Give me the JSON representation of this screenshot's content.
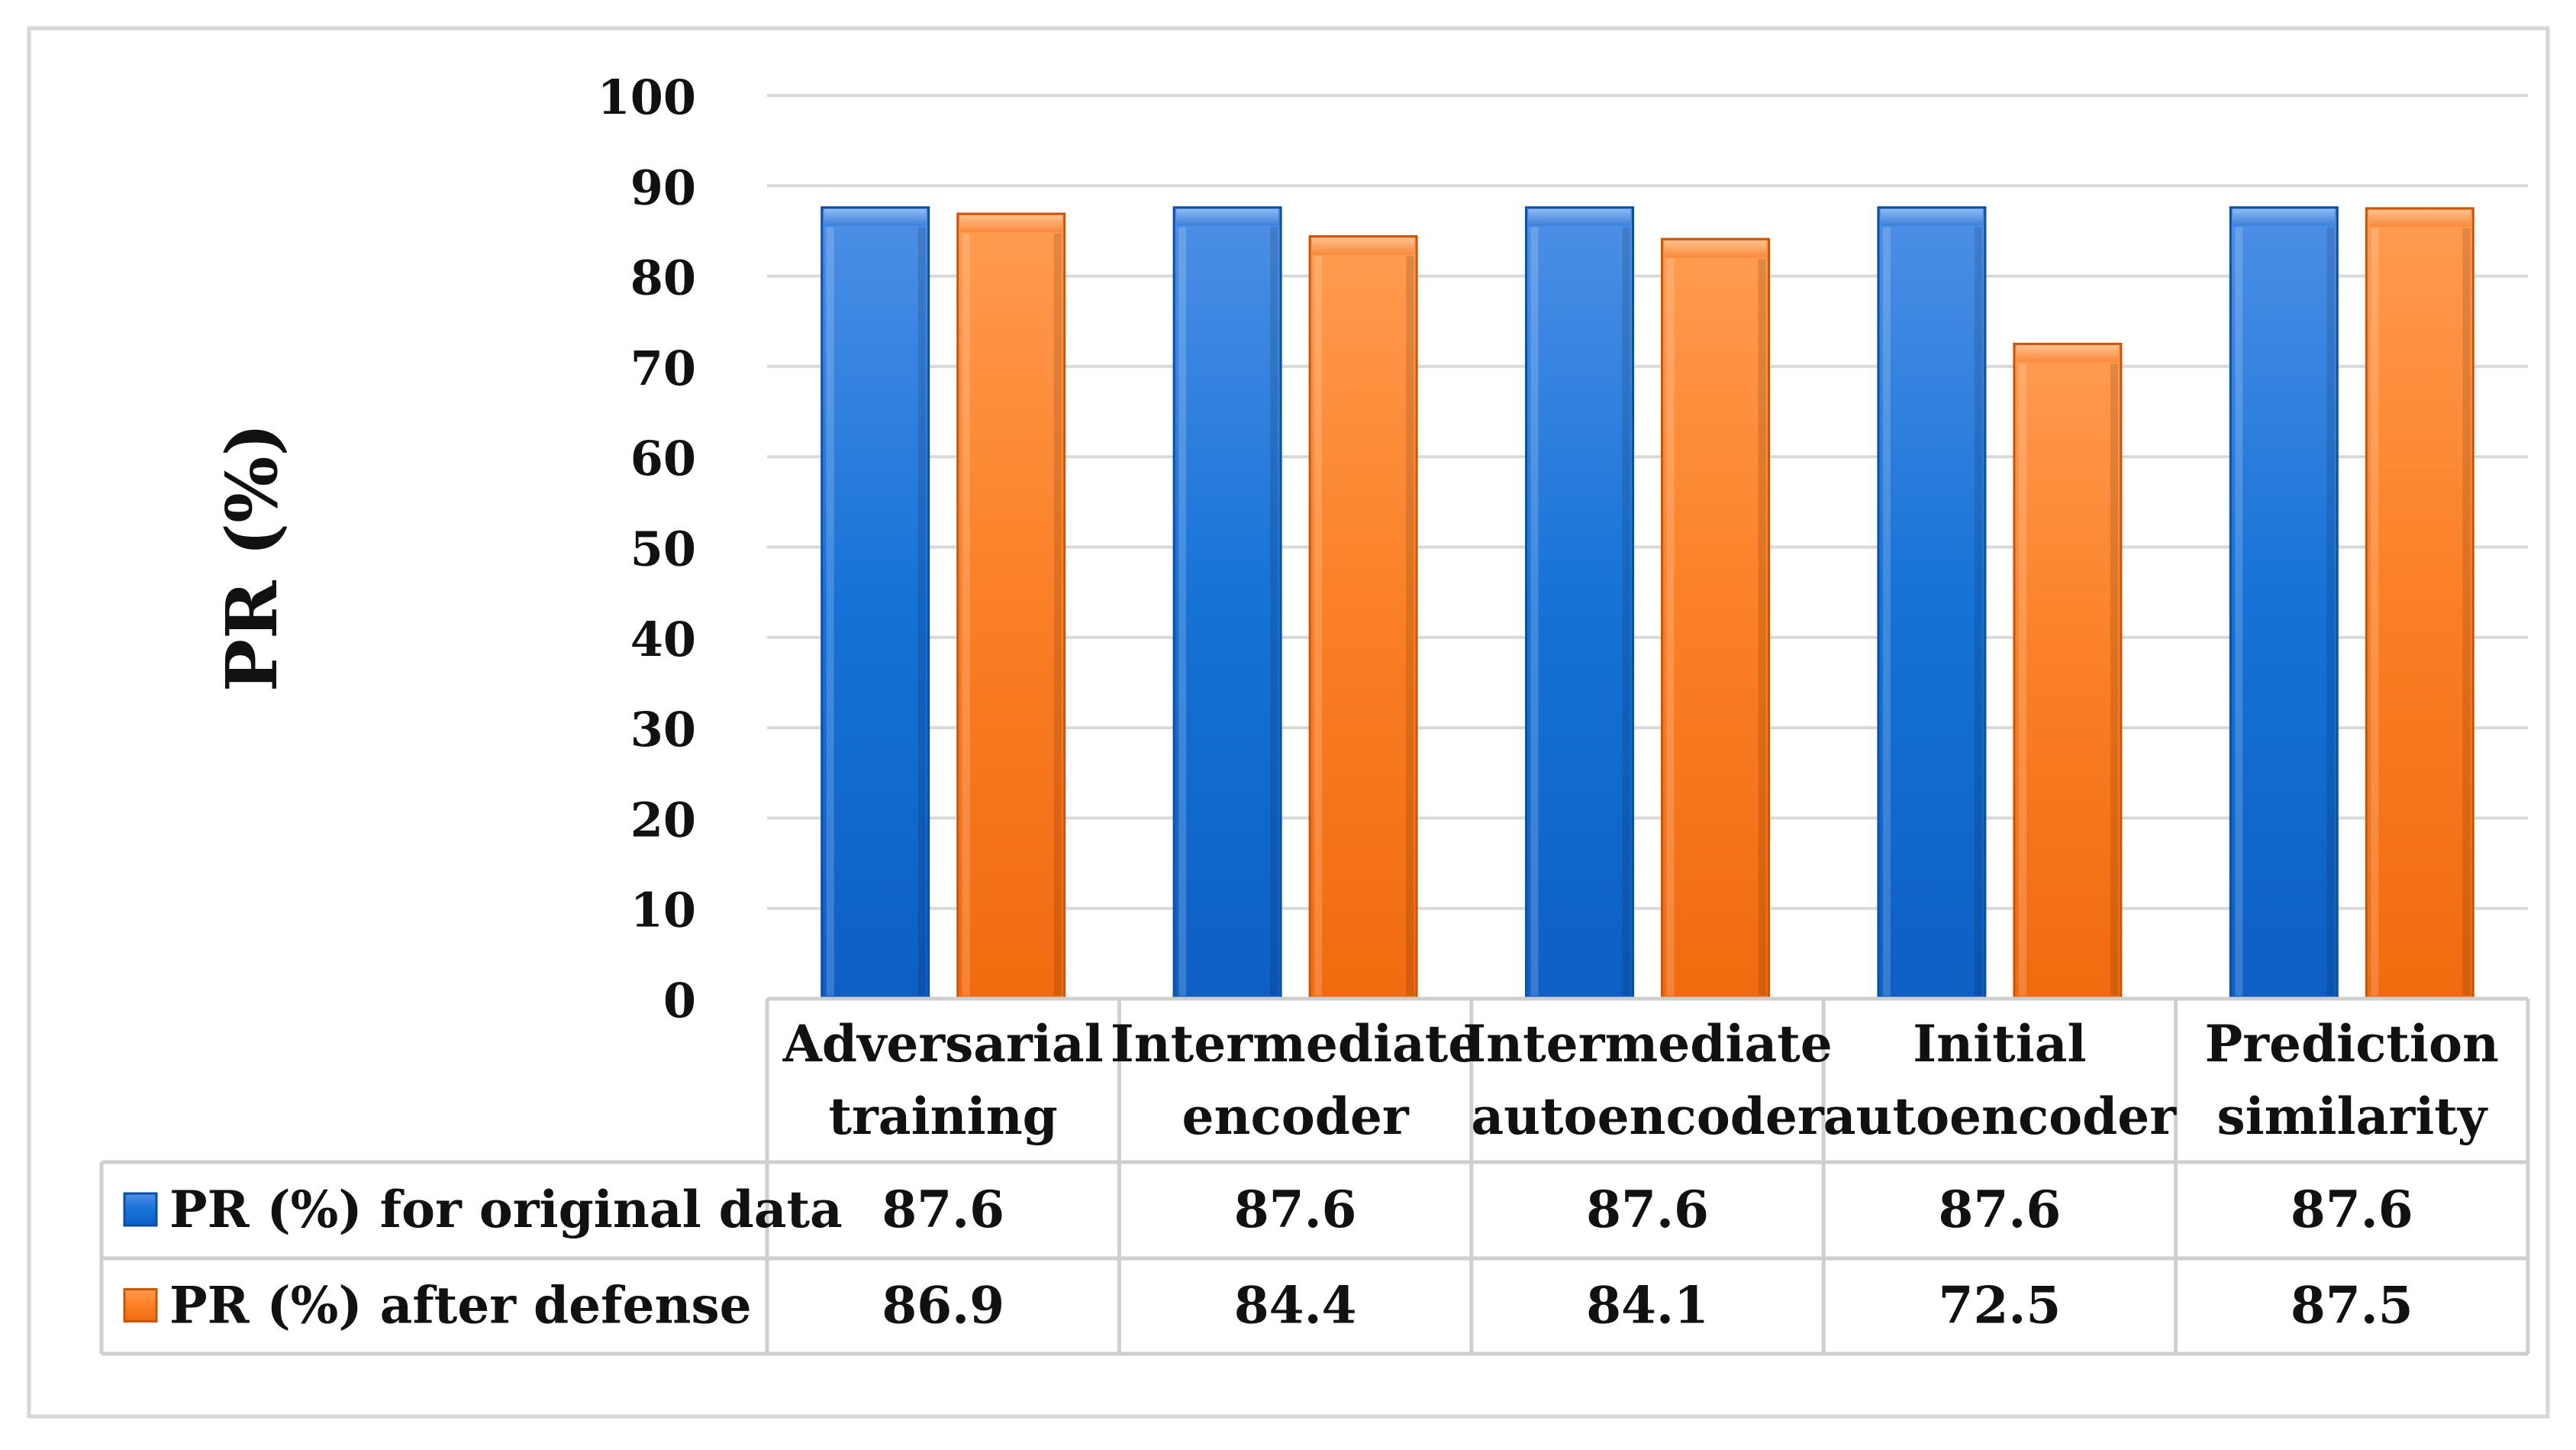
{
  "chart_data": {
    "type": "bar",
    "title": "",
    "xlabel": "",
    "ylabel": "PR (%)",
    "ylim": [
      0,
      100
    ],
    "yticks": [
      "0",
      "10",
      "20",
      "30",
      "40",
      "50",
      "60",
      "70",
      "80",
      "90",
      "100"
    ],
    "grid": true,
    "categories": [
      [
        "Adversarial",
        "training"
      ],
      [
        "Intermediate",
        "encoder"
      ],
      [
        "Intermediate",
        "autoencoder"
      ],
      [
        "Initial",
        "autoencoder"
      ],
      [
        "Prediction",
        "similarity"
      ]
    ],
    "series": [
      {
        "name": "PR (%) for original data",
        "color": "#1f6fcf",
        "values": [
          87.6,
          87.6,
          87.6,
          87.6,
          87.6
        ],
        "labels": [
          "87.6",
          "87.6",
          "87.6",
          "87.6",
          "87.6"
        ]
      },
      {
        "name": "PR (%) after defense",
        "color": "#f47b1f",
        "values": [
          86.9,
          84.4,
          84.1,
          72.5,
          87.5
        ],
        "labels": [
          "86.9",
          "84.4",
          "84.1",
          "72.5",
          "87.5"
        ]
      }
    ],
    "legend": "data-table"
  }
}
